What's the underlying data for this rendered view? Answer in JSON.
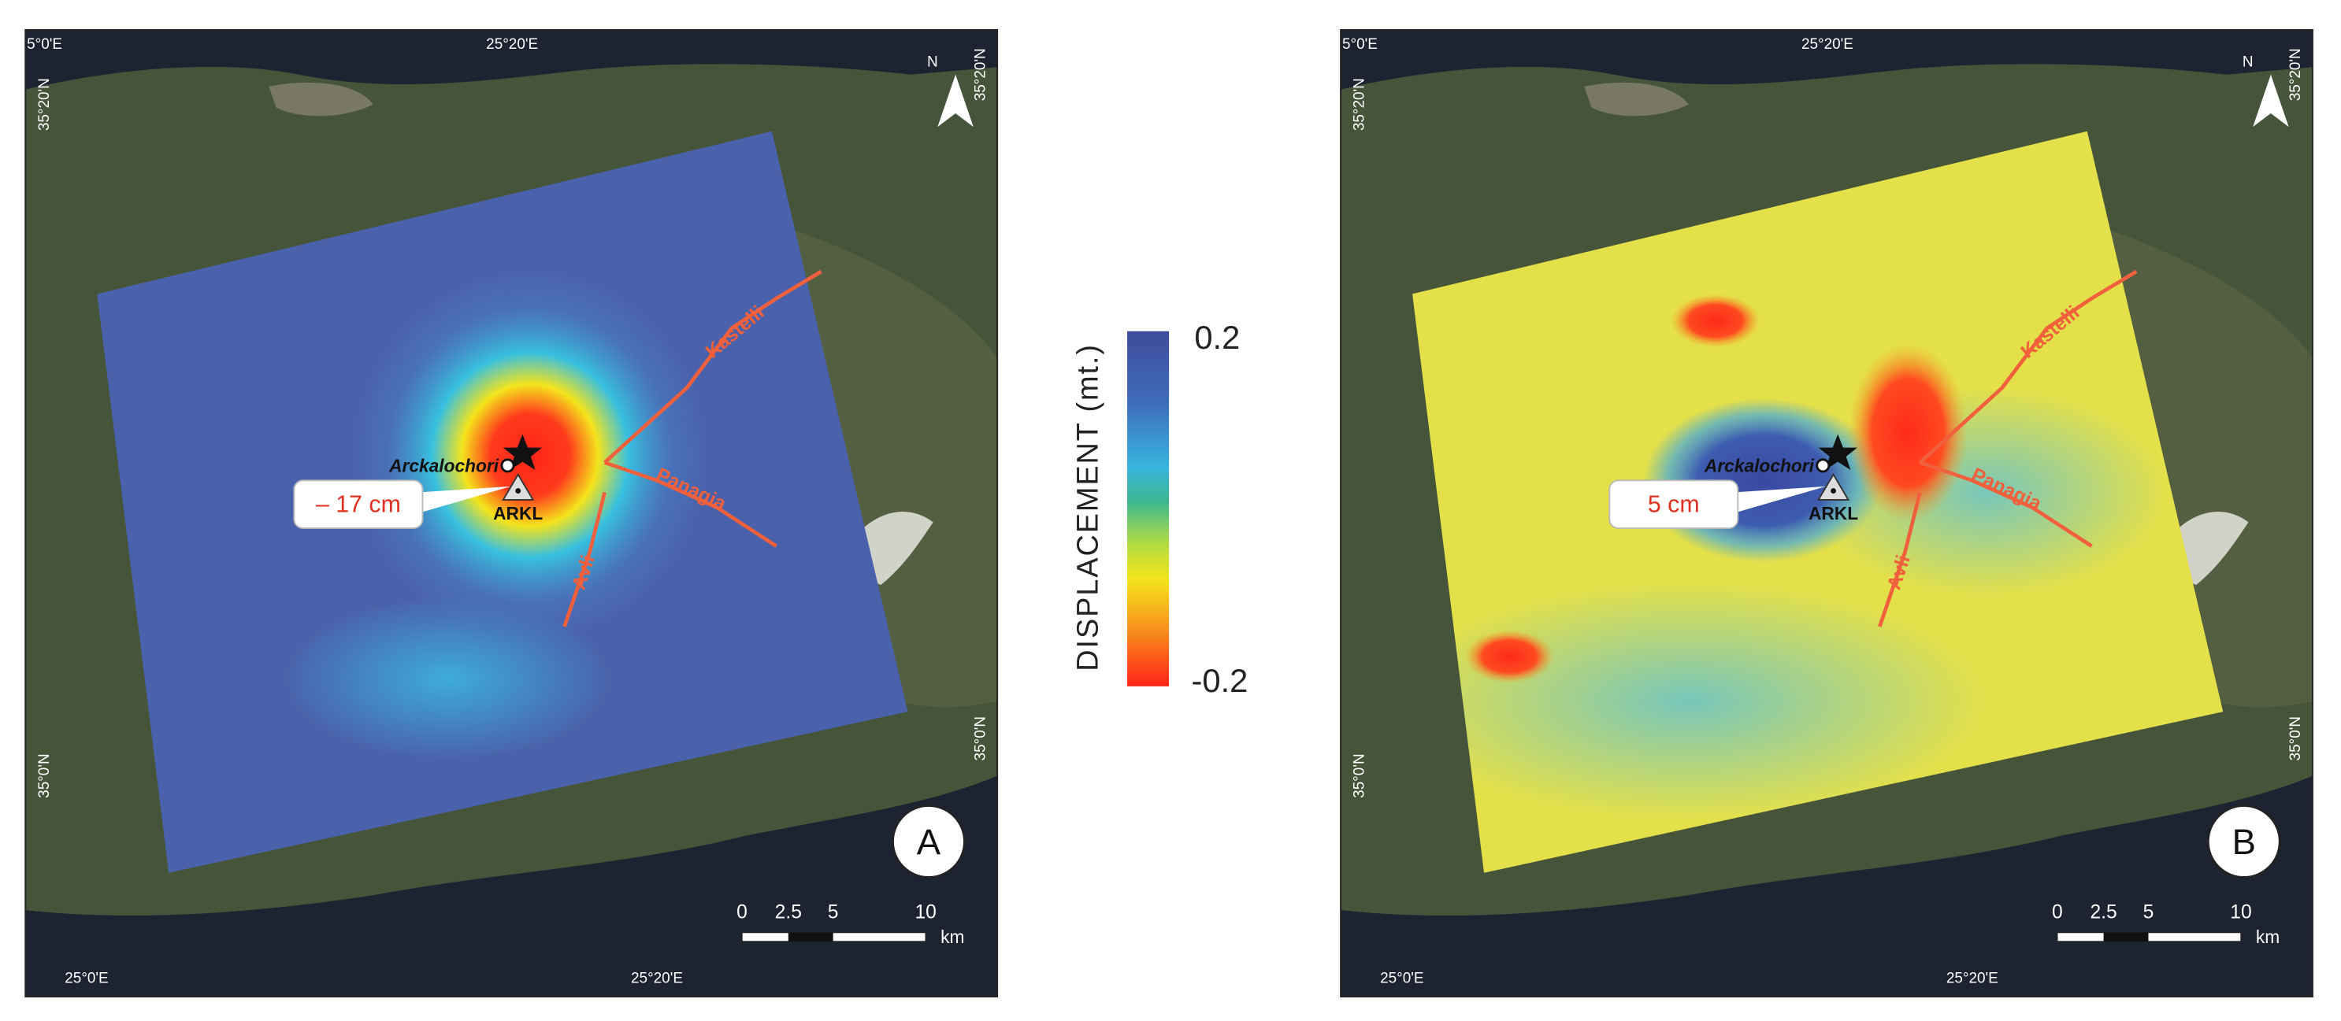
{
  "colorbar": {
    "title": "DISPLACEMENT (mt.)",
    "max_label": "0.2",
    "min_label": "-0.2"
  },
  "panels": [
    {
      "label": "A",
      "coords": {
        "top": [
          "5°0'E",
          "25°20'E"
        ],
        "bottom": [
          "25°0'E",
          "25°20'E"
        ],
        "left": [
          "35°20'N",
          "35°0'N"
        ],
        "right": [
          "35°20'N",
          "35°0'N"
        ]
      },
      "north": "N",
      "place": "Arckalochori",
      "station": "ARKL",
      "faults": [
        "Kastelli",
        "Panagia",
        "Avli"
      ],
      "callout": "– 17 cm",
      "scale": [
        "0",
        "2.5",
        "5",
        "10"
      ],
      "scale_unit": "km"
    },
    {
      "label": "B",
      "coords": {
        "top": [
          "5°0'E",
          "25°20'E"
        ],
        "bottom": [
          "25°0'E",
          "25°20'E"
        ],
        "left": [
          "35°20'N",
          "35°0'N"
        ],
        "right": [
          "35°20'N",
          "35°0'N"
        ]
      },
      "north": "N",
      "place": "Arckalochori",
      "station": "ARKL",
      "faults": [
        "Kastelli",
        "Panagia",
        "Avli"
      ],
      "callout": "5 cm",
      "scale": [
        "0",
        "2.5",
        "5",
        "10"
      ],
      "scale_unit": "km"
    }
  ]
}
